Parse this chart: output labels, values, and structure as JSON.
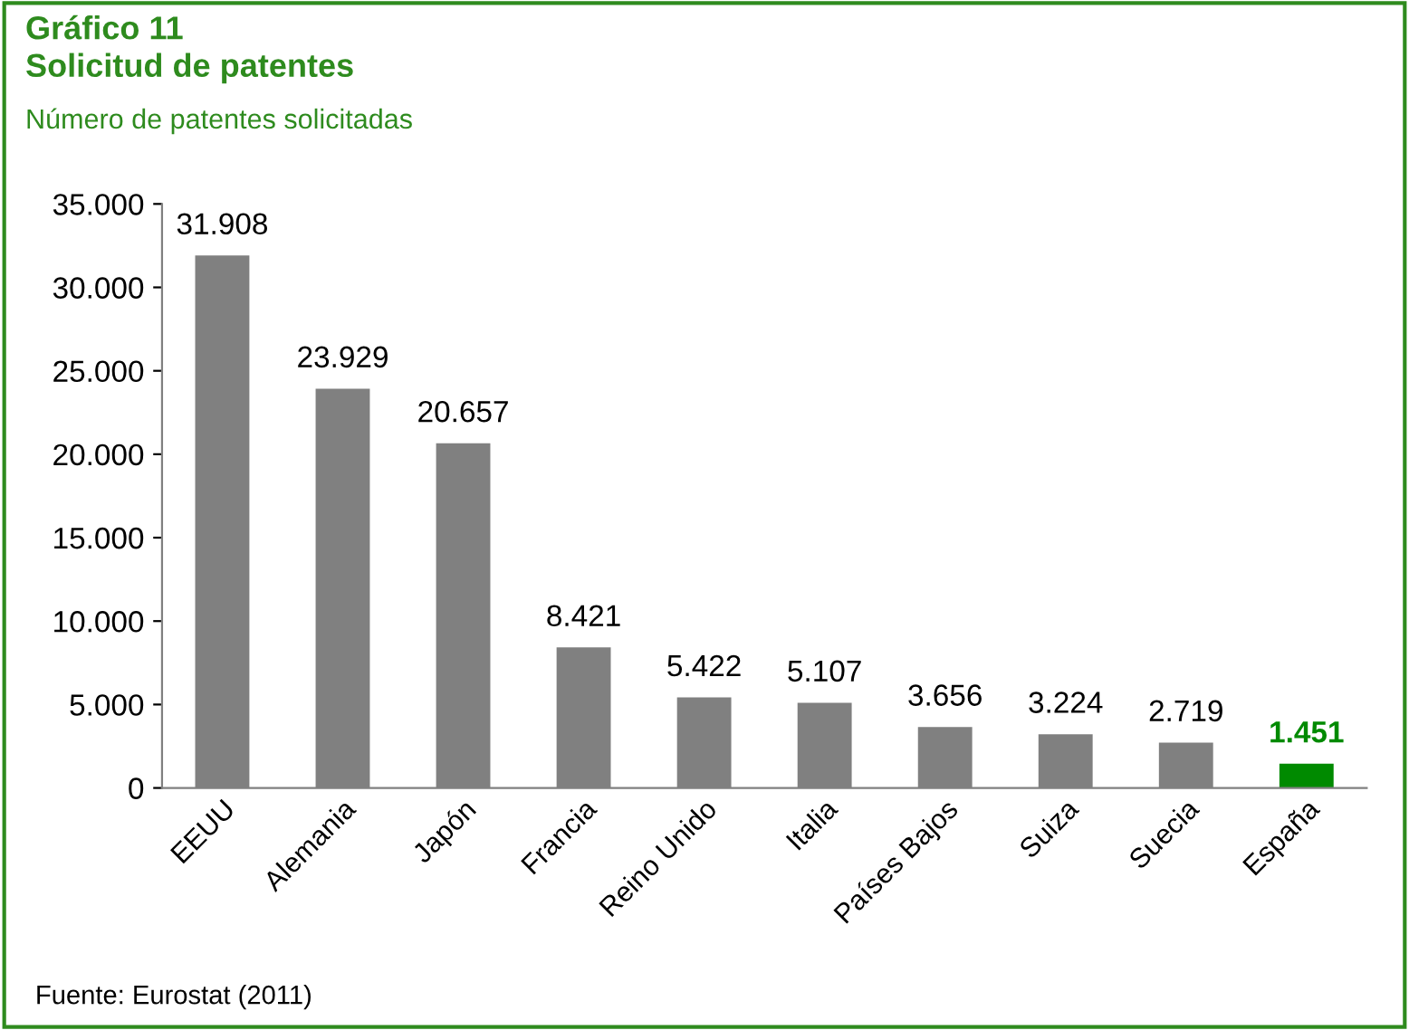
{
  "chart_data": {
    "type": "bar",
    "title": "Gráfico 11\nSolicitud de patentes",
    "subtitle": "Número de patentes solicitadas",
    "categories": [
      "EEUU",
      "Alemania",
      "Japón",
      "Francia",
      "Reino Unido",
      "Italia",
      "Países Bajos",
      "Suiza",
      "Suecia",
      "España"
    ],
    "values": [
      31908,
      23929,
      20657,
      8421,
      5422,
      5107,
      3656,
      3224,
      2719,
      1451
    ],
    "value_labels": [
      "31.908",
      "23.929",
      "20.657",
      "8.421",
      "5.422",
      "5.107",
      "3.656",
      "3.224",
      "2.719",
      "1.451"
    ],
    "colors": [
      "#808080",
      "#808080",
      "#808080",
      "#808080",
      "#808080",
      "#808080",
      "#808080",
      "#808080",
      "#808080",
      "#008a00"
    ],
    "ylim": [
      0,
      35000
    ],
    "yticks": [
      {
        "value": 0,
        "label": "0"
      },
      {
        "value": 5000,
        "label": "5.000"
      },
      {
        "value": 10000,
        "label": "10.000"
      },
      {
        "value": 15000,
        "label": "15.000"
      },
      {
        "value": 20000,
        "label": "20.000"
      },
      {
        "value": 25000,
        "label": "25.000"
      },
      {
        "value": 30000,
        "label": "30.000"
      },
      {
        "value": 35000,
        "label": "35.000"
      }
    ],
    "grid": false,
    "legend": false,
    "annotations": [
      "Fuente: Eurostat (2011)"
    ]
  }
}
